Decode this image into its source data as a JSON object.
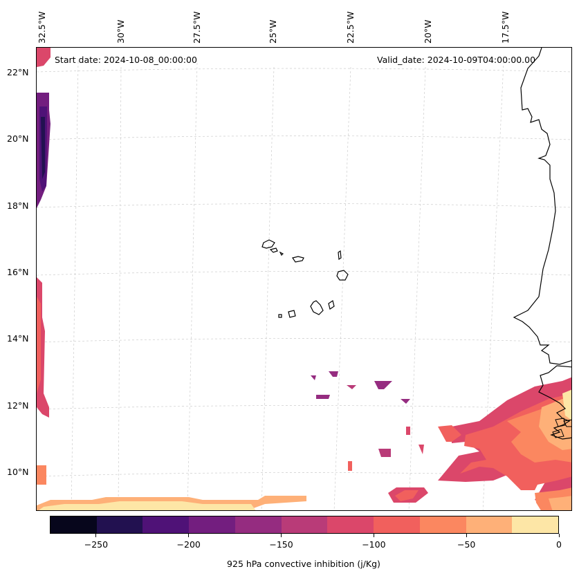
{
  "map": {
    "start_label": "Start date: 2024-10-08_00:00:00",
    "valid_label": "Valid_date: 2024-10-09T04:00:00.00",
    "lon_labels": [
      "32.5°W",
      "30°W",
      "27.5°W",
      "25°W",
      "22.5°W",
      "20°W",
      "17.5°W"
    ],
    "lat_labels": [
      "22°N",
      "20°N",
      "18°N",
      "16°N",
      "14°N",
      "12°N",
      "10°N"
    ]
  },
  "colorbar": {
    "title": "925 hPa convective inhibition (j/Kg)",
    "tick_labels": [
      "−250",
      "−200",
      "−150",
      "−100",
      "−50",
      "0"
    ],
    "colors": [
      "#07061c",
      "#221150",
      "#4f1277",
      "#731e7f",
      "#952c80",
      "#b93b78",
      "#db476a",
      "#f1605d",
      "#fb8760",
      "#feb078",
      "#fde6a6"
    ]
  }
}
